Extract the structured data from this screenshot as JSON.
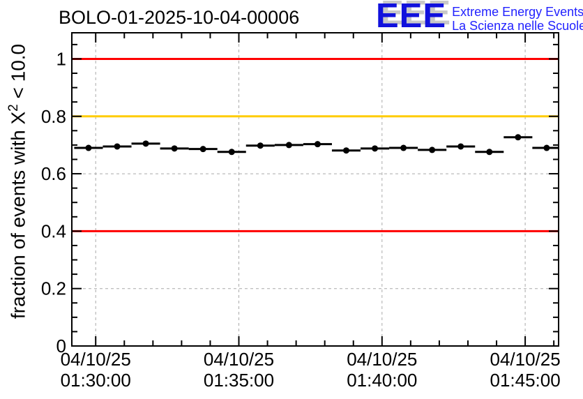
{
  "header": {
    "title": "BOLO-01-2025-10-04-00006",
    "logo": {
      "acronym": "EEE",
      "tagline_line1": "Extreme Energy Events",
      "tagline_line2": "La Scienza nelle Scuole",
      "letters_color": "#1111dd",
      "text_color": "#2222ff",
      "shadow_color": "#c8c8c8"
    }
  },
  "chart_data": {
    "type": "scatter",
    "title": "BOLO-01-2025-10-04-00006",
    "ylabel_parts": {
      "prefix": "fraction of events with X",
      "sup": "2",
      "suffix": " < 10.0"
    },
    "xlabel": "",
    "ylim": [
      0,
      1.091
    ],
    "yticks": [
      {
        "value": 0,
        "label": "0"
      },
      {
        "value": 0.2,
        "label": "0.2"
      },
      {
        "value": 0.4,
        "label": "0.4"
      },
      {
        "value": 0.6,
        "label": "0.6"
      },
      {
        "value": 0.8,
        "label": "0.8"
      },
      {
        "value": 1,
        "label": "1"
      }
    ],
    "y_minor_step": 0.05,
    "xlim": [
      "01:29:10",
      "01:46:10"
    ],
    "x_major_ticks": [
      {
        "date": "04/10/25",
        "time": "01:30:00"
      },
      {
        "date": "04/10/25",
        "time": "01:35:00"
      },
      {
        "date": "04/10/25",
        "time": "01:40:00"
      },
      {
        "date": "04/10/25",
        "time": "01:45:00"
      }
    ],
    "x_minor_step_s": 60,
    "grid": true,
    "grid_color": "#aaaaaa",
    "frame_color": "#000000",
    "reference_lines": [
      {
        "value": 1.0,
        "color": "#ff0000"
      },
      {
        "value": 0.8,
        "color": "#ffcc00"
      },
      {
        "value": 0.4,
        "color": "#ff0000"
      }
    ],
    "series": [
      {
        "name": "fraction of events with X2 < 10.0",
        "color": "#000000",
        "marker": "filled-circle",
        "bin_halfwidth_s": 30,
        "points": [
          {
            "time": "01:29:45",
            "value": 0.69
          },
          {
            "time": "01:30:45",
            "value": 0.695
          },
          {
            "time": "01:31:45",
            "value": 0.705
          },
          {
            "time": "01:32:45",
            "value": 0.688
          },
          {
            "time": "01:33:45",
            "value": 0.686
          },
          {
            "time": "01:34:45",
            "value": 0.676
          },
          {
            "time": "01:35:45",
            "value": 0.698
          },
          {
            "time": "01:36:45",
            "value": 0.7
          },
          {
            "time": "01:37:45",
            "value": 0.703
          },
          {
            "time": "01:38:45",
            "value": 0.681
          },
          {
            "time": "01:39:45",
            "value": 0.688
          },
          {
            "time": "01:40:45",
            "value": 0.69
          },
          {
            "time": "01:41:45",
            "value": 0.683
          },
          {
            "time": "01:42:45",
            "value": 0.695
          },
          {
            "time": "01:43:45",
            "value": 0.676
          },
          {
            "time": "01:44:45",
            "value": 0.727
          },
          {
            "time": "01:45:45",
            "value": 0.69
          }
        ]
      }
    ]
  }
}
